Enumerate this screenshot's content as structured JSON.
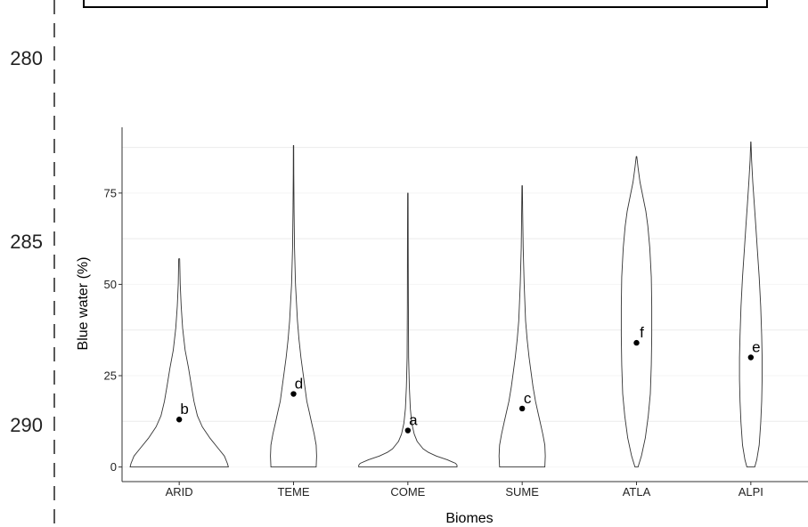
{
  "page": {
    "line_numbers": [
      {
        "value": "280"
      },
      {
        "value": "285"
      },
      {
        "value": "290"
      }
    ]
  },
  "chart_data": {
    "type": "violin",
    "title": "",
    "xlabel": "Biomes",
    "ylabel": "Blue water (%)",
    "categories": [
      "ARID",
      "TEME",
      "COME",
      "SUME",
      "ATLA",
      "ALPI"
    ],
    "ylim": [
      -4,
      93
    ],
    "yticks": [
      0,
      25,
      50,
      75
    ],
    "ytick_labels": [
      "0",
      "25",
      "50",
      "75"
    ],
    "grid": "horizontal",
    "gridline_values": [
      12.5,
      37.5,
      62.5,
      87.5
    ],
    "means": [
      13,
      20,
      10,
      16,
      34,
      30
    ],
    "max_values": [
      57,
      88,
      75,
      77,
      85,
      89
    ],
    "significance_letters": [
      "b",
      "d",
      "a",
      "c",
      "f",
      "e"
    ],
    "violin_profiles": [
      {
        "category": "ARID",
        "y": [
          0,
          1,
          3,
          5,
          8,
          11,
          14,
          18,
          22,
          27,
          32,
          38,
          44,
          50,
          57
        ],
        "half_width": [
          1.0,
          0.98,
          0.92,
          0.8,
          0.62,
          0.47,
          0.37,
          0.3,
          0.25,
          0.19,
          0.12,
          0.07,
          0.04,
          0.02,
          0.01
        ]
      },
      {
        "category": "TEME",
        "y": [
          0,
          3,
          6,
          9,
          12,
          15,
          18,
          22,
          26,
          30,
          35,
          40,
          50,
          60,
          70,
          80,
          88
        ],
        "half_width": [
          0.46,
          0.47,
          0.46,
          0.42,
          0.37,
          0.32,
          0.27,
          0.23,
          0.19,
          0.15,
          0.11,
          0.08,
          0.04,
          0.02,
          0.01,
          0.005,
          0.003
        ]
      },
      {
        "category": "COME",
        "y": [
          0,
          0.5,
          1,
          2,
          3,
          4,
          5,
          7,
          9,
          12,
          16,
          22,
          30,
          45,
          60,
          75
        ],
        "half_width": [
          1.0,
          1.0,
          0.97,
          0.8,
          0.58,
          0.42,
          0.31,
          0.19,
          0.13,
          0.08,
          0.05,
          0.03,
          0.015,
          0.01,
          0.007,
          0.005
        ]
      },
      {
        "category": "SUME",
        "y": [
          0,
          3,
          6,
          9,
          12,
          15,
          18,
          22,
          26,
          30,
          35,
          40,
          50,
          60,
          70,
          77
        ],
        "half_width": [
          0.46,
          0.47,
          0.46,
          0.42,
          0.37,
          0.32,
          0.27,
          0.22,
          0.18,
          0.14,
          0.1,
          0.07,
          0.04,
          0.02,
          0.01,
          0.004
        ]
      },
      {
        "category": "ATLA",
        "y": [
          0,
          3,
          8,
          14,
          20,
          28,
          36,
          44,
          52,
          60,
          66,
          70,
          74,
          78,
          82,
          85
        ],
        "half_width": [
          0.03,
          0.1,
          0.18,
          0.24,
          0.28,
          0.3,
          0.31,
          0.31,
          0.3,
          0.27,
          0.23,
          0.19,
          0.13,
          0.07,
          0.03,
          0.005
        ]
      },
      {
        "category": "ALPI",
        "y": [
          0,
          2,
          6,
          12,
          18,
          24,
          30,
          36,
          44,
          52,
          60,
          66,
          72,
          78,
          84,
          89
        ],
        "half_width": [
          0.08,
          0.12,
          0.17,
          0.2,
          0.22,
          0.23,
          0.23,
          0.22,
          0.2,
          0.17,
          0.13,
          0.1,
          0.07,
          0.04,
          0.015,
          0.003
        ]
      }
    ]
  }
}
